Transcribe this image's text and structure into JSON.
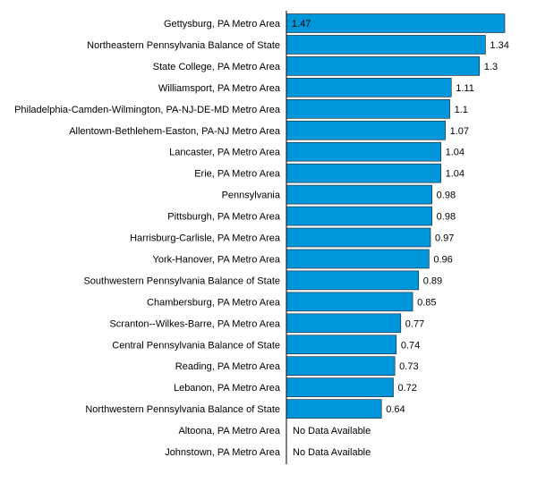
{
  "chart_data": {
    "type": "bar",
    "orientation": "horizontal",
    "bar_color": "#0096db",
    "categories": [
      "Gettysburg, PA Metro Area",
      "Northeastern Pennsylvania Balance of State",
      "State College, PA Metro Area",
      "Williamsport, PA Metro Area",
      "Philadelphia-Camden-Wilmington, PA-NJ-DE-MD Metro Area",
      "Allentown-Bethlehem-Easton, PA-NJ Metro Area",
      "Lancaster, PA Metro Area",
      "Erie, PA Metro Area",
      "Pennsylvania",
      "Pittsburgh, PA Metro Area",
      "Harrisburg-Carlisle, PA Metro Area",
      "York-Hanover, PA Metro Area",
      "Southwestern Pennsylvania Balance of State",
      "Chambersburg, PA Metro Area",
      "Scranton--Wilkes-Barre, PA Metro Area",
      "Central Pennsylvania Balance of State",
      "Reading, PA Metro Area",
      "Lebanon, PA Metro Area",
      "Northwestern Pennsylvania Balance of State",
      "Altoona, PA Metro Area",
      "Johnstown, PA Metro Area"
    ],
    "values": [
      1.47,
      1.34,
      1.3,
      1.11,
      1.1,
      1.07,
      1.04,
      1.04,
      0.98,
      0.98,
      0.97,
      0.96,
      0.89,
      0.85,
      0.77,
      0.74,
      0.73,
      0.72,
      0.64,
      null,
      null
    ],
    "value_labels": [
      "1.47",
      "1.34",
      "1.3",
      "1.11",
      "1.1",
      "1.07",
      "1.04",
      "1.04",
      "0.98",
      "0.98",
      "0.97",
      "0.96",
      "0.89",
      "0.85",
      "0.77",
      "0.74",
      "0.73",
      "0.72",
      "0.64",
      "No Data Available",
      "No Data Available"
    ],
    "xlim": [
      0,
      1.47
    ],
    "grid": false,
    "legend": "none"
  }
}
